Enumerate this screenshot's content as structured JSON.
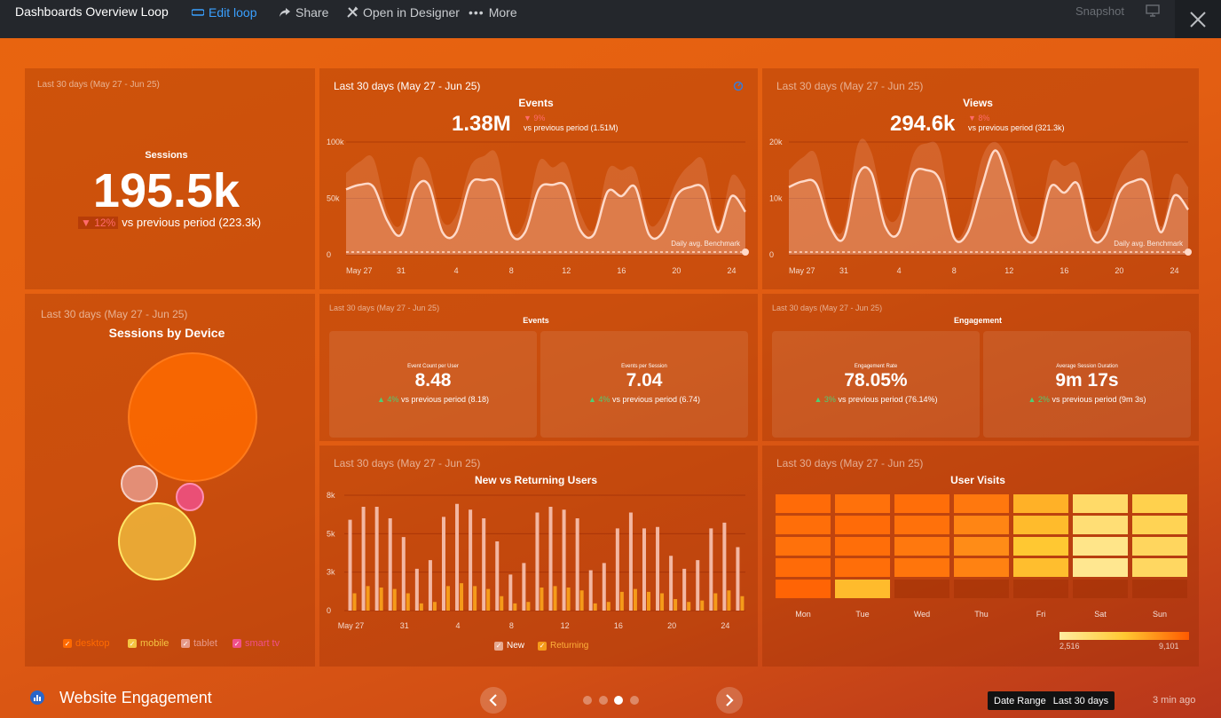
{
  "topbar": {
    "title": "Dashboards Overview Loop",
    "edit_loop": "Edit loop",
    "share": "Share",
    "open_designer": "Open in Designer",
    "more": "More",
    "snapshot": "Snapshot"
  },
  "period": "Last 30 days (May 27 - Jun 25)",
  "sessions": {
    "title": "Sessions",
    "value": "195.5k",
    "delta": "▼ 12%",
    "compare": "vs previous period (223.3k)"
  },
  "events_chart": {
    "title": "Events",
    "value": "1.38M",
    "delta": "▼ 9%",
    "compare": "vs previous period (1.51M)",
    "y_ticks": [
      "100k",
      "50k",
      "0"
    ],
    "x_ticks": [
      "May 27",
      "31",
      "4",
      "8",
      "12",
      "16",
      "20",
      "24"
    ],
    "benchmark_label": "Daily avg. Benchmark"
  },
  "views_chart": {
    "title": "Views",
    "value": "294.6k",
    "delta": "▼ 8%",
    "compare": "vs previous period (321.3k)",
    "y_ticks": [
      "20k",
      "10k",
      "0"
    ],
    "x_ticks": [
      "May 27",
      "31",
      "4",
      "8",
      "12",
      "16",
      "20",
      "24"
    ],
    "benchmark_label": "Daily avg. Benchmark"
  },
  "device": {
    "title": "Sessions by Device",
    "legend": [
      {
        "label": "desktop",
        "color": "#ff6a00"
      },
      {
        "label": "mobile",
        "color": "#f4c542"
      },
      {
        "label": "tablet",
        "color": "#e79a8a"
      },
      {
        "label": "smart tv",
        "color": "#f0508a"
      }
    ]
  },
  "events_kpi": {
    "title": "Events",
    "cards": [
      {
        "label": "Event Count per User",
        "value": "8.48",
        "delta": "▲ 4%",
        "compare": "vs previous period (8.18)"
      },
      {
        "label": "Events per Session",
        "value": "7.04",
        "delta": "▲ 4%",
        "compare": "vs previous period (6.74)"
      }
    ]
  },
  "engagement_kpi": {
    "title": "Engagement",
    "cards": [
      {
        "label": "Engagement Rate",
        "value": "78.05%",
        "delta": "▲ 3%",
        "compare": "vs previous period (76.14%)"
      },
      {
        "label": "Average Session Duration",
        "value": "9m 17s",
        "delta": "▲ 2%",
        "compare": "vs previous period (9m 3s)"
      }
    ]
  },
  "new_returning": {
    "title": "New vs Returning Users",
    "y_ticks": [
      "8k",
      "5k",
      "3k",
      "0"
    ],
    "x_ticks": [
      "May 27",
      "31",
      "4",
      "8",
      "12",
      "16",
      "20",
      "24"
    ],
    "legend_new": "New",
    "legend_returning": "Returning"
  },
  "user_visits": {
    "title": "User Visits",
    "days": [
      "Mon",
      "Tue",
      "Wed",
      "Thu",
      "Fri",
      "Sat",
      "Sun"
    ],
    "scale_min": "2,516",
    "scale_max": "9,101"
  },
  "footer": {
    "dashboard_name": "Website Engagement",
    "date_range_label": "Date Range",
    "date_range_value": "Last 30 days",
    "updated": "3 min ago"
  },
  "chart_data": [
    {
      "type": "area",
      "title": "Events",
      "x": [
        "May 27",
        "May 28",
        "May 29",
        "May 30",
        "May 31",
        "Jun 1",
        "Jun 2",
        "Jun 3",
        "Jun 4",
        "Jun 5",
        "Jun 6",
        "Jun 7",
        "Jun 8",
        "Jun 9",
        "Jun 10",
        "Jun 11",
        "Jun 12",
        "Jun 13",
        "Jun 14",
        "Jun 15",
        "Jun 16",
        "Jun 17",
        "Jun 18",
        "Jun 19",
        "Jun 20",
        "Jun 21",
        "Jun 22",
        "Jun 23",
        "Jun 24",
        "Jun 25"
      ],
      "series": [
        {
          "name": "Events",
          "values": [
            58000,
            62000,
            60000,
            30000,
            18000,
            58000,
            62000,
            20000,
            20000,
            62000,
            66000,
            62000,
            18000,
            20000,
            58000,
            62000,
            60000,
            22000,
            18000,
            56000,
            52000,
            60000,
            18000,
            20000,
            52000,
            60000,
            58000,
            20000,
            52000,
            38000
          ]
        }
      ],
      "ylim": [
        0,
        100000
      ]
    },
    {
      "type": "area",
      "title": "Views",
      "x": [
        "May 27",
        "May 28",
        "May 29",
        "May 30",
        "May 31",
        "Jun 1",
        "Jun 2",
        "Jun 3",
        "Jun 4",
        "Jun 5",
        "Jun 6",
        "Jun 7",
        "Jun 8",
        "Jun 9",
        "Jun 10",
        "Jun 11",
        "Jun 12",
        "Jun 13",
        "Jun 14",
        "Jun 15",
        "Jun 16",
        "Jun 17",
        "Jun 18",
        "Jun 19",
        "Jun 20",
        "Jun 21",
        "Jun 22",
        "Jun 23",
        "Jun 24",
        "Jun 25"
      ],
      "series": [
        {
          "name": "Views",
          "values": [
            12000,
            13000,
            12500,
            5000,
            3000,
            14000,
            14500,
            5000,
            4000,
            14000,
            15000,
            13000,
            3000,
            4000,
            12000,
            18500,
            12000,
            3500,
            3000,
            12000,
            11000,
            12500,
            3000,
            3500,
            11000,
            13000,
            12500,
            4000,
            10500,
            8000
          ]
        }
      ],
      "ylim": [
        0,
        20000
      ]
    },
    {
      "type": "bar",
      "title": "New vs Returning Users",
      "categories": [
        "May 27",
        "May 28",
        "May 29",
        "May 30",
        "May 31",
        "Jun 1",
        "Jun 2",
        "Jun 3",
        "Jun 4",
        "Jun 5",
        "Jun 6",
        "Jun 7",
        "Jun 8",
        "Jun 9",
        "Jun 10",
        "Jun 11",
        "Jun 12",
        "Jun 13",
        "Jun 14",
        "Jun 15",
        "Jun 16",
        "Jun 17",
        "Jun 18",
        "Jun 19",
        "Jun 20",
        "Jun 21",
        "Jun 22",
        "Jun 23",
        "Jun 24",
        "Jun 25"
      ],
      "series": [
        {
          "name": "New",
          "values": [
            6300,
            7200,
            7200,
            6400,
            5100,
            2900,
            3500,
            6500,
            7400,
            7000,
            6400,
            4800,
            2500,
            3300,
            6800,
            7200,
            7000,
            6400,
            2800,
            3300,
            5700,
            6800,
            5700,
            5800,
            3800,
            2900,
            3500,
            5700,
            6100,
            4400
          ]
        },
        {
          "name": "Returning",
          "values": [
            1200,
            1700,
            1600,
            1500,
            1200,
            500,
            600,
            1700,
            1900,
            1700,
            1500,
            1000,
            500,
            600,
            1600,
            1700,
            1600,
            1400,
            500,
            600,
            1300,
            1500,
            1300,
            1200,
            800,
            600,
            700,
            1200,
            1400,
            1000
          ]
        }
      ],
      "ylim": [
        0,
        8000
      ]
    },
    {
      "type": "bubble",
      "title": "Sessions by Device",
      "series": [
        {
          "name": "desktop",
          "size": 1.0
        },
        {
          "name": "mobile",
          "size": 0.6
        },
        {
          "name": "tablet",
          "size": 0.28
        },
        {
          "name": "smart tv",
          "size": 0.21
        }
      ]
    },
    {
      "type": "heatmap",
      "title": "User Visits",
      "x": [
        "Mon",
        "Tue",
        "Wed",
        "Thu",
        "Fri",
        "Sat",
        "Sun"
      ],
      "rows": 5,
      "values": [
        [
          8600,
          8400,
          8500,
          8200,
          6500,
          4200,
          5000
        ],
        [
          8500,
          8600,
          8400,
          7800,
          6200,
          3800,
          4800
        ],
        [
          8400,
          8500,
          8200,
          7600,
          5800,
          3200,
          4500
        ],
        [
          8600,
          8500,
          8300,
          7900,
          6100,
          3000,
          4400
        ],
        [
          8800,
          6200,
          null,
          null,
          null,
          null,
          null
        ]
      ],
      "scale": [
        2516,
        9101
      ]
    }
  ]
}
